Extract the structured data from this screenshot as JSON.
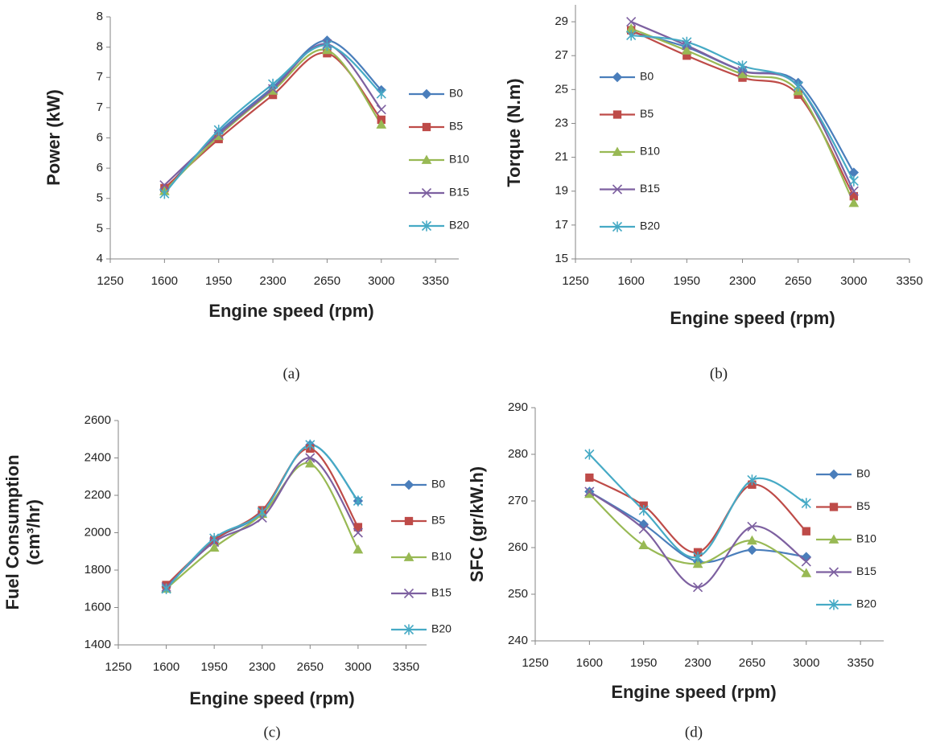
{
  "chart_data": [
    {
      "type": "line",
      "caption": "(a)",
      "x_label": "Engine speed (rpm)",
      "y_label": [
        "Power (kW)"
      ],
      "x": [
        1600,
        1950,
        2300,
        2650,
        3000
      ],
      "xlim": [
        1250,
        3500
      ],
      "xticks": [
        1250,
        1600,
        1950,
        2300,
        2650,
        3000,
        3350
      ],
      "ylim": [
        4,
        8
      ],
      "yticks": [
        4,
        {
          "value": 4.5,
          "label": "5"
        },
        5,
        {
          "value": 5.5,
          "label": "6"
        },
        6,
        {
          "value": 6.5,
          "label": "7"
        },
        7,
        {
          "value": 7.5,
          "label": "8"
        },
        8
      ],
      "grid": false,
      "legend": "right",
      "smooth": true,
      "series": [
        {
          "name": "B0",
          "color": "#4a7ebb",
          "marker": "diamond",
          "values": [
            5.14,
            6.09,
            6.84,
            7.61,
            6.79
          ]
        },
        {
          "name": "B5",
          "color": "#be4b48",
          "marker": "square",
          "values": [
            5.17,
            5.98,
            6.71,
            7.4,
            6.3
          ]
        },
        {
          "name": "B10",
          "color": "#98b954",
          "marker": "triangle",
          "values": [
            5.12,
            6.03,
            6.78,
            7.45,
            6.22
          ]
        },
        {
          "name": "B15",
          "color": "#7d60a0",
          "marker": "x",
          "values": [
            5.22,
            6.06,
            6.81,
            7.55,
            6.47
          ]
        },
        {
          "name": "B20",
          "color": "#46aac5",
          "marker": "star",
          "values": [
            5.08,
            6.13,
            6.89,
            7.53,
            6.73
          ]
        }
      ]
    },
    {
      "type": "line",
      "caption": "(b)",
      "x_label": "Engine speed (rpm)",
      "y_label": [
        "Torque (N.m)"
      ],
      "x": [
        1600,
        1950,
        2300,
        2650,
        3000
      ],
      "xlim": [
        1250,
        3350
      ],
      "xticks": [
        1250,
        1600,
        1950,
        2300,
        2650,
        3000,
        3350
      ],
      "ylim": [
        15,
        30
      ],
      "yticks": [
        15,
        17,
        19,
        21,
        23,
        25,
        27,
        29
      ],
      "grid": false,
      "legend": "upper left",
      "smooth": true,
      "series": [
        {
          "name": "B0",
          "color": "#4a7ebb",
          "marker": "diamond",
          "values": [
            28.4,
            27.5,
            26.1,
            25.4,
            20.1
          ]
        },
        {
          "name": "B5",
          "color": "#be4b48",
          "marker": "square",
          "values": [
            28.5,
            27.0,
            25.7,
            24.7,
            18.7
          ]
        },
        {
          "name": "B10",
          "color": "#98b954",
          "marker": "triangle",
          "values": [
            28.6,
            27.3,
            25.9,
            24.9,
            18.3
          ]
        },
        {
          "name": "B15",
          "color": "#7d60a0",
          "marker": "x",
          "values": [
            29.0,
            27.6,
            26.1,
            25.2,
            19.0
          ]
        },
        {
          "name": "B20",
          "color": "#46aac5",
          "marker": "star",
          "values": [
            28.2,
            27.8,
            26.4,
            25.2,
            19.6
          ]
        }
      ]
    },
    {
      "type": "line",
      "caption": "(c)",
      "x_label": "Engine speed (rpm)",
      "y_label": [
        "Fuel Consumption",
        "(cm³/hr)"
      ],
      "x": [
        1600,
        1950,
        2300,
        2650,
        3000
      ],
      "xlim": [
        1250,
        3500
      ],
      "xticks": [
        1250,
        1600,
        1950,
        2300,
        2650,
        3000,
        3350
      ],
      "ylim": [
        1400,
        2600
      ],
      "yticks": [
        1400,
        1600,
        1800,
        2000,
        2200,
        2400,
        2600
      ],
      "grid": false,
      "legend": "right",
      "smooth": true,
      "series": [
        {
          "name": "B0",
          "color": "#4a7ebb",
          "marker": "diamond",
          "values": [
            1710,
            1960,
            2110,
            2470,
            2170
          ]
        },
        {
          "name": "B5",
          "color": "#be4b48",
          "marker": "square",
          "values": [
            1720,
            1960,
            2120,
            2450,
            2030
          ]
        },
        {
          "name": "B10",
          "color": "#98b954",
          "marker": "triangle",
          "values": [
            1700,
            1920,
            2100,
            2370,
            1910
          ]
        },
        {
          "name": "B15",
          "color": "#7d60a0",
          "marker": "x",
          "values": [
            1710,
            1950,
            2080,
            2400,
            2000
          ]
        },
        {
          "name": "B20",
          "color": "#46aac5",
          "marker": "star",
          "values": [
            1700,
            1970,
            2110,
            2470,
            2170
          ]
        }
      ]
    },
    {
      "type": "line",
      "caption": "(d)",
      "x_label": "Engine speed (rpm)",
      "y_label": [
        "SFC (gr/kW.h)"
      ],
      "x": [
        1600,
        1950,
        2300,
        2650,
        3000
      ],
      "xlim": [
        1250,
        3500
      ],
      "xticks": [
        1250,
        1600,
        1950,
        2300,
        2650,
        3000,
        3350
      ],
      "ylim": [
        240,
        290
      ],
      "yticks": [
        240,
        250,
        260,
        270,
        280,
        290
      ],
      "grid": false,
      "legend": "right",
      "smooth": true,
      "series": [
        {
          "name": "B0",
          "color": "#4a7ebb",
          "marker": "diamond",
          "values": [
            272,
            265,
            257,
            259.5,
            258
          ]
        },
        {
          "name": "B5",
          "color": "#be4b48",
          "marker": "square",
          "values": [
            275,
            269,
            259,
            273.5,
            263.5
          ]
        },
        {
          "name": "B10",
          "color": "#98b954",
          "marker": "triangle",
          "values": [
            271.5,
            260.5,
            256.5,
            261.5,
            254.5
          ]
        },
        {
          "name": "B15",
          "color": "#7d60a0",
          "marker": "x",
          "values": [
            272,
            264,
            251.5,
            264.5,
            257
          ]
        },
        {
          "name": "B20",
          "color": "#46aac5",
          "marker": "star",
          "values": [
            280,
            268,
            258,
            274.5,
            269.5
          ]
        }
      ]
    }
  ]
}
